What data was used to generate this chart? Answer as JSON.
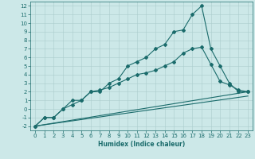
{
  "title": "",
  "xlabel": "Humidex (Indice chaleur)",
  "bg_color": "#cce8e8",
  "line_color": "#1a6b6b",
  "grid_color": "#aacccc",
  "xlim": [
    -0.5,
    23.5
  ],
  "ylim": [
    -2.5,
    12.5
  ],
  "xticks": [
    0,
    1,
    2,
    3,
    4,
    5,
    6,
    7,
    8,
    9,
    10,
    11,
    12,
    13,
    14,
    15,
    16,
    17,
    18,
    19,
    20,
    21,
    22,
    23
  ],
  "yticks": [
    -2,
    -1,
    0,
    1,
    2,
    3,
    4,
    5,
    6,
    7,
    8,
    9,
    10,
    11,
    12
  ],
  "line1_x": [
    0,
    1,
    2,
    3,
    4,
    5,
    6,
    7,
    8,
    9,
    10,
    11,
    12,
    13,
    14,
    15,
    16,
    17,
    18,
    19,
    20,
    21,
    22,
    23
  ],
  "line1_y": [
    -2,
    -1,
    -1,
    0,
    1,
    1,
    2,
    2,
    3,
    3.5,
    5,
    5.5,
    6,
    7,
    7.5,
    9,
    9.2,
    11,
    12,
    7,
    5,
    3,
    2,
    2
  ],
  "line2_x": [
    0,
    1,
    2,
    3,
    4,
    5,
    6,
    7,
    8,
    9,
    10,
    11,
    12,
    13,
    14,
    15,
    16,
    17,
    18,
    19,
    20,
    21,
    22,
    23
  ],
  "line2_y": [
    -2,
    -1,
    -1,
    0,
    0.5,
    1,
    2,
    2.2,
    2.5,
    3,
    3.5,
    4,
    4.2,
    4.5,
    5.0,
    5.5,
    6.5,
    7.0,
    7.2,
    5.2,
    3.2,
    2.8,
    2.2,
    2
  ],
  "line3_x": [
    0,
    23
  ],
  "line3_y": [
    -2,
    2
  ],
  "line4_x": [
    0,
    23
  ],
  "line4_y": [
    -2,
    1.5
  ],
  "marker": "D",
  "marker_size": 2.0,
  "lw": 0.8,
  "tick_fontsize": 5.0,
  "xlabel_fontsize": 5.5
}
